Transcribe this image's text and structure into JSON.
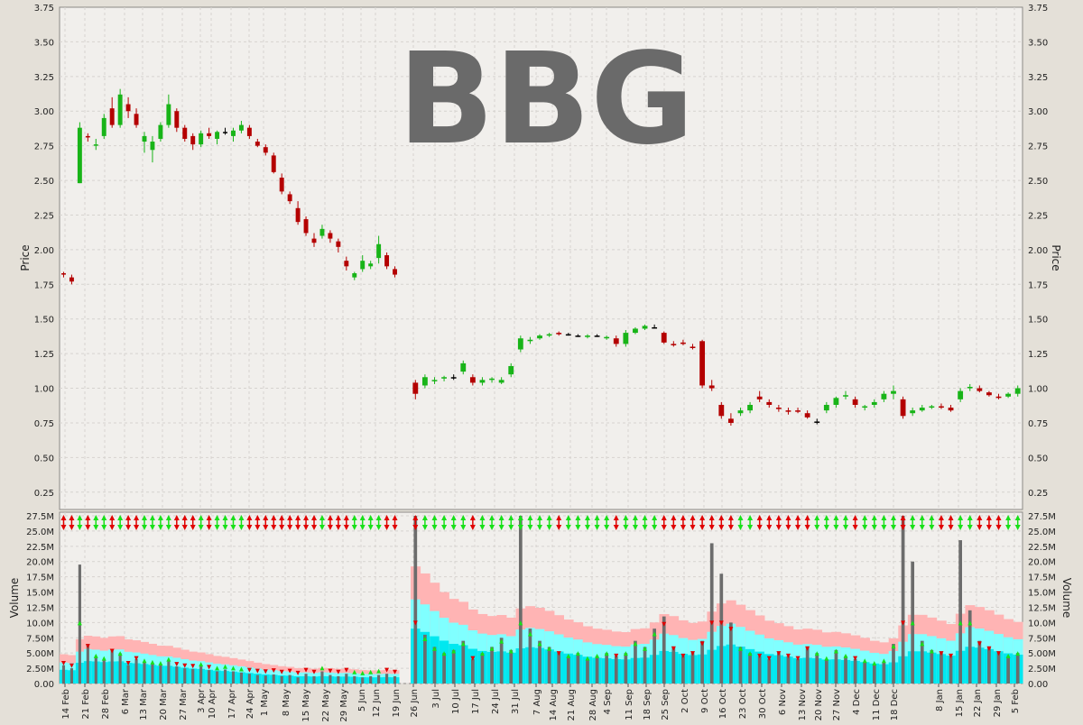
{
  "chart_data": [
    {
      "type": "candlestick",
      "title": "BBG",
      "ylabel": "Price",
      "ylim": [
        0.125,
        3.75
      ],
      "y_ticks": [
        0.25,
        0.5,
        0.75,
        1.0,
        1.25,
        1.5,
        1.75,
        2.0,
        2.25,
        2.5,
        2.75,
        3.0,
        3.25,
        3.5,
        3.75
      ],
      "y_tick_labels": [
        "0.25",
        "0.50",
        "0.75",
        "1.00",
        "1.25",
        "1.50",
        "1.75",
        "2.00",
        "2.25",
        "2.50",
        "2.75",
        "3.00",
        "3.25",
        "3.50",
        "3.75"
      ],
      "grid": true,
      "colors": {
        "up": "#18b418",
        "down": "#b40000",
        "unchanged": "#000000",
        "background": "#f1efec",
        "grid": "#d6d3cf",
        "title": "#6a6a6a"
      },
      "segments": [
        {
          "from": "14 Feb",
          "to": "19 Jun",
          "ohlc": [
            [
              1.83,
              1.84,
              1.8,
              1.82
            ],
            [
              1.8,
              1.82,
              1.75,
              1.77
            ],
            [
              2.48,
              2.92,
              2.48,
              2.88
            ],
            [
              2.82,
              2.84,
              2.78,
              2.81
            ],
            [
              2.75,
              2.8,
              2.72,
              2.76
            ],
            [
              2.82,
              2.98,
              2.8,
              2.95
            ],
            [
              3.02,
              3.1,
              2.88,
              2.9
            ],
            [
              2.9,
              3.16,
              2.88,
              3.12
            ],
            [
              3.05,
              3.1,
              2.95,
              3.0
            ],
            [
              2.98,
              3.02,
              2.88,
              2.9
            ],
            [
              2.78,
              2.85,
              2.7,
              2.82
            ],
            [
              2.72,
              2.82,
              2.63,
              2.78
            ],
            [
              2.8,
              2.92,
              2.78,
              2.9
            ],
            [
              2.9,
              3.12,
              2.88,
              3.05
            ],
            [
              3.0,
              3.02,
              2.85,
              2.88
            ],
            [
              2.88,
              2.9,
              2.78,
              2.8
            ],
            [
              2.82,
              2.84,
              2.72,
              2.76
            ],
            [
              2.76,
              2.86,
              2.74,
              2.84
            ],
            [
              2.84,
              2.88,
              2.8,
              2.82
            ],
            [
              2.8,
              2.86,
              2.76,
              2.85
            ],
            [
              2.85,
              2.88,
              2.83,
              2.85
            ],
            [
              2.82,
              2.88,
              2.78,
              2.86
            ],
            [
              2.86,
              2.93,
              2.84,
              2.9
            ],
            [
              2.88,
              2.9,
              2.8,
              2.82
            ],
            [
              2.78,
              2.8,
              2.74,
              2.75
            ],
            [
              2.74,
              2.76,
              2.68,
              2.7
            ],
            [
              2.68,
              2.7,
              2.55,
              2.56
            ],
            [
              2.52,
              2.55,
              2.4,
              2.42
            ],
            [
              2.4,
              2.42,
              2.33,
              2.35
            ],
            [
              2.3,
              2.35,
              2.18,
              2.2
            ],
            [
              2.22,
              2.24,
              2.1,
              2.12
            ],
            [
              2.08,
              2.12,
              2.02,
              2.05
            ],
            [
              2.1,
              2.18,
              2.08,
              2.15
            ],
            [
              2.12,
              2.14,
              2.05,
              2.08
            ],
            [
              2.06,
              2.08,
              1.98,
              2.02
            ],
            [
              1.92,
              1.95,
              1.85,
              1.88
            ],
            [
              1.8,
              1.84,
              1.78,
              1.83
            ],
            [
              1.86,
              1.96,
              1.84,
              1.92
            ],
            [
              1.88,
              1.92,
              1.86,
              1.9
            ],
            [
              1.94,
              2.1,
              1.9,
              2.04
            ],
            [
              1.96,
              1.98,
              1.86,
              1.88
            ],
            [
              1.86,
              1.88,
              1.8,
              1.82
            ]
          ]
        },
        {
          "from": "26 Jun",
          "to": "5 Feb",
          "ohlc": [
            [
              1.04,
              1.06,
              0.92,
              0.96
            ],
            [
              1.02,
              1.1,
              1.0,
              1.08
            ],
            [
              1.05,
              1.08,
              1.03,
              1.06
            ],
            [
              1.07,
              1.09,
              1.05,
              1.08
            ],
            [
              1.08,
              1.1,
              1.06,
              1.08
            ],
            [
              1.12,
              1.2,
              1.1,
              1.18
            ],
            [
              1.08,
              1.1,
              1.02,
              1.04
            ],
            [
              1.04,
              1.08,
              1.02,
              1.06
            ],
            [
              1.06,
              1.08,
              1.04,
              1.07
            ],
            [
              1.04,
              1.08,
              1.03,
              1.06
            ],
            [
              1.1,
              1.18,
              1.08,
              1.16
            ],
            [
              1.28,
              1.38,
              1.26,
              1.36
            ],
            [
              1.34,
              1.37,
              1.32,
              1.35
            ],
            [
              1.36,
              1.39,
              1.35,
              1.38
            ],
            [
              1.38,
              1.4,
              1.37,
              1.39
            ],
            [
              1.4,
              1.41,
              1.38,
              1.39
            ],
            [
              1.39,
              1.4,
              1.38,
              1.39
            ],
            [
              1.38,
              1.39,
              1.37,
              1.38
            ],
            [
              1.37,
              1.39,
              1.36,
              1.38
            ],
            [
              1.38,
              1.39,
              1.37,
              1.38
            ],
            [
              1.36,
              1.38,
              1.35,
              1.37
            ],
            [
              1.36,
              1.38,
              1.3,
              1.32
            ],
            [
              1.32,
              1.42,
              1.3,
              1.4
            ],
            [
              1.4,
              1.44,
              1.39,
              1.43
            ],
            [
              1.43,
              1.46,
              1.42,
              1.45
            ],
            [
              1.44,
              1.46,
              1.43,
              1.44
            ],
            [
              1.4,
              1.41,
              1.32,
              1.33
            ],
            [
              1.32,
              1.34,
              1.3,
              1.31
            ],
            [
              1.33,
              1.35,
              1.31,
              1.32
            ],
            [
              1.3,
              1.32,
              1.28,
              1.29
            ],
            [
              1.34,
              1.35,
              1.0,
              1.02
            ],
            [
              1.02,
              1.06,
              0.98,
              1.0
            ],
            [
              0.88,
              0.9,
              0.78,
              0.8
            ],
            [
              0.78,
              0.82,
              0.73,
              0.75
            ],
            [
              0.82,
              0.86,
              0.8,
              0.84
            ],
            [
              0.84,
              0.9,
              0.82,
              0.88
            ],
            [
              0.94,
              0.98,
              0.9,
              0.92
            ],
            [
              0.9,
              0.92,
              0.86,
              0.88
            ],
            [
              0.86,
              0.88,
              0.83,
              0.85
            ],
            [
              0.84,
              0.86,
              0.81,
              0.83
            ],
            [
              0.84,
              0.86,
              0.82,
              0.83
            ],
            [
              0.82,
              0.84,
              0.78,
              0.79
            ],
            [
              0.76,
              0.78,
              0.74,
              0.76
            ],
            [
              0.84,
              0.9,
              0.82,
              0.88
            ],
            [
              0.88,
              0.94,
              0.86,
              0.93
            ],
            [
              0.94,
              0.98,
              0.92,
              0.95
            ],
            [
              0.92,
              0.94,
              0.86,
              0.88
            ],
            [
              0.86,
              0.88,
              0.84,
              0.87
            ],
            [
              0.88,
              0.92,
              0.86,
              0.9
            ],
            [
              0.92,
              0.98,
              0.9,
              0.96
            ],
            [
              0.96,
              1.02,
              0.92,
              0.98
            ],
            [
              0.92,
              0.94,
              0.78,
              0.8
            ],
            [
              0.82,
              0.86,
              0.8,
              0.84
            ],
            [
              0.84,
              0.88,
              0.83,
              0.86
            ],
            [
              0.86,
              0.88,
              0.85,
              0.87
            ],
            [
              0.87,
              0.89,
              0.85,
              0.86
            ],
            [
              0.86,
              0.88,
              0.83,
              0.84
            ],
            [
              0.92,
              1.0,
              0.9,
              0.98
            ],
            [
              1.0,
              1.03,
              0.98,
              1.01
            ],
            [
              1.0,
              1.02,
              0.97,
              0.98
            ],
            [
              0.97,
              0.98,
              0.94,
              0.95
            ],
            [
              0.94,
              0.96,
              0.92,
              0.93
            ],
            [
              0.94,
              0.97,
              0.93,
              0.96
            ],
            [
              0.96,
              1.02,
              0.94,
              1.0
            ]
          ]
        }
      ]
    },
    {
      "type": "bar",
      "ylabel": "Volume",
      "ylim": [
        0,
        27.5
      ],
      "y_ticks": [
        0,
        2.5,
        5.0,
        7.5,
        10.0,
        12.5,
        15.0,
        17.5,
        20.0,
        22.5,
        25.0,
        27.5
      ],
      "y_tick_labels": [
        "0.00",
        "2.50M",
        "5.00M",
        "7.50M",
        "10.0M",
        "12.5M",
        "15.0M",
        "17.5M",
        "20.0M",
        "22.5M",
        "25.0M",
        "27.5M"
      ],
      "unit": "M",
      "colors": {
        "bar": "#6c6c6c",
        "band_outer": "#ffb4b4",
        "band_mid": "#80ffff",
        "band_inner": "#00e8f0",
        "up_marker": "#18e018",
        "down_marker": "#e00000"
      },
      "segments": [
        {
          "from": "14 Feb",
          "to": "19 Jun",
          "values": [
            3.0,
            2.5,
            19.5,
            6.5,
            4.5,
            4.0,
            5.5,
            5.0,
            3.0,
            4.0,
            3.5,
            3.2,
            3.0,
            3.8,
            2.8,
            2.5,
            2.4,
            2.8,
            2.2,
            2.0,
            2.3,
            2.0,
            1.8,
            1.6,
            1.4,
            1.3,
            1.5,
            1.2,
            1.4,
            1.0,
            1.6,
            1.2,
            2.0,
            1.4,
            1.2,
            1.6,
            1.2,
            1.0,
            1.2,
            1.4,
            1.6,
            1.2
          ]
        },
        {
          "from": "26 Jun",
          "to": "5 Feb",
          "values": [
            27.5,
            8.0,
            6.0,
            5.0,
            5.5,
            7.0,
            4.0,
            5.0,
            6.0,
            7.5,
            5.5,
            27.5,
            9.0,
            7.0,
            6.0,
            5.0,
            4.5,
            5.0,
            4.0,
            4.5,
            5.0,
            4.5,
            5.0,
            7.0,
            6.0,
            9.0,
            11.0,
            6.0,
            4.5,
            5.0,
            7.0,
            23.0,
            18.0,
            10.0,
            6.0,
            5.0,
            4.5,
            4.0,
            5.0,
            4.5,
            4.0,
            6.0,
            5.0,
            4.0,
            5.5,
            4.5,
            4.0,
            3.5,
            3.0,
            3.5,
            6.5,
            27.5,
            20.0,
            7.0,
            5.5,
            5.0,
            4.5,
            23.5,
            12.0,
            7.0,
            6.0,
            5.0,
            4.5,
            5.0
          ]
        }
      ]
    }
  ],
  "x_axis": {
    "labels": [
      "14 Feb",
      "21 Feb",
      "28 Feb",
      "6 Mar",
      "13 Mar",
      "20 Mar",
      "27 Mar",
      "3 Apr",
      "10 Apr",
      "17 Apr",
      "24 Apr",
      "1 May",
      "8 May",
      "15 May",
      "22 May",
      "29 May",
      "5 Jun",
      "12 Jun",
      "19 Jun",
      "26 Jun",
      "3 Jul",
      "10 Jul",
      "17 Jul",
      "24 Jul",
      "31 Jul",
      "7 Aug",
      "14 Aug",
      "21 Aug",
      "28 Aug",
      "4 Sep",
      "11 Sep",
      "18 Sep",
      "25 Sep",
      "2 Oct",
      "9 Oct",
      "16 Oct",
      "23 Oct",
      "30 Oct",
      "6 Nov",
      "13 Nov",
      "20 Nov",
      "27 Nov",
      "4 Dec",
      "11 Dec",
      "18 Dec",
      "8 Jan",
      "15 Jan",
      "22 Jan",
      "29 Jan",
      "5 Feb"
    ]
  }
}
